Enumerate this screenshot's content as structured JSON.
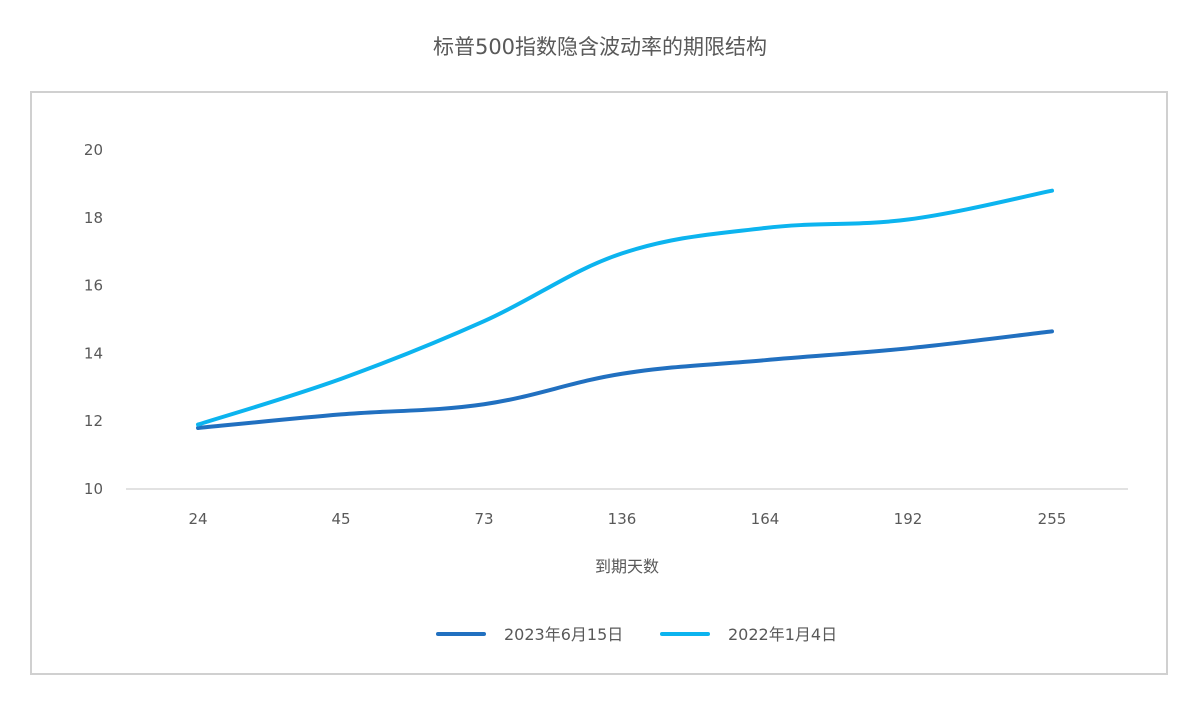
{
  "chart_data": {
    "type": "line",
    "title": "标普500指数隐含波动率的期限结构",
    "xlabel": "到期天数",
    "ylabel": "",
    "categories": [
      "24",
      "45",
      "73",
      "136",
      "164",
      "192",
      "255"
    ],
    "ylim": [
      10,
      21
    ],
    "yticks": [
      10,
      12,
      14,
      16,
      18,
      20
    ],
    "grid": false,
    "legend_position": "bottom",
    "series": [
      {
        "name": "2023年6月15日",
        "color": "#2170c0",
        "values": [
          11.8,
          12.2,
          12.5,
          13.4,
          13.8,
          14.15,
          14.65
        ]
      },
      {
        "name": "2022年1月4日",
        "color": "#0cb4ef",
        "values": [
          11.9,
          13.25,
          14.95,
          16.95,
          17.7,
          17.95,
          18.8
        ]
      }
    ]
  }
}
